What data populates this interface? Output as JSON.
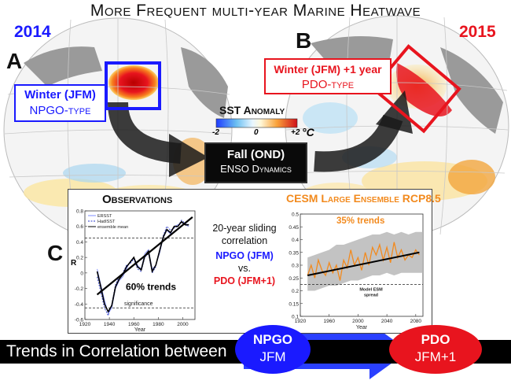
{
  "title": "More Frequent multi-year Marine Heatwave",
  "year_left": "2014",
  "year_right": "2015",
  "panel_a": "A",
  "panel_b": "B",
  "panel_c": "C",
  "box_a": {
    "line1": "Winter (JFM)",
    "line2": "NPGO-type"
  },
  "box_b": {
    "line1": "Winter (JFM) +1 year",
    "line2": "PDO-type"
  },
  "colorbar": {
    "title": "SST Anomaly",
    "min": "-2",
    "mid": "0",
    "max": "+2",
    "unit": "°C"
  },
  "fall_box": {
    "line1": "Fall (OND)",
    "line2": "ENSO Dynamics"
  },
  "middle_text": {
    "line1": "20-year sliding",
    "line2": "correlation",
    "npgo": "NPGO (JFM)",
    "vs": "vs.",
    "pdo": "PDO (JFM+1)"
  },
  "bottom_bar": {
    "text": "Trends in Correlation between"
  },
  "npgo_ellipse": {
    "line1": "NPGO",
    "line2": "JFM"
  },
  "pdo_ellipse": {
    "line1": "PDO",
    "line2": "JFM+1"
  },
  "colors": {
    "blue": "#1a1aff",
    "red": "#e8141e",
    "orange": "#f28a1e",
    "bar": "#000000"
  },
  "chart_data": [
    {
      "type": "line",
      "title": "Observations",
      "xlabel": "Year",
      "ylabel": "R",
      "xlim": [
        1920,
        2010
      ],
      "ylim": [
        -0.6,
        0.8
      ],
      "xticks": [
        1920,
        1940,
        1960,
        1980,
        2000
      ],
      "yticks": [
        -0.6,
        -0.4,
        -0.2,
        0,
        0.2,
        0.4,
        0.6,
        0.8
      ],
      "legend": [
        "ERSST",
        "HadISST",
        "ensemble mean"
      ],
      "annotations": [
        "60% trends",
        "significance"
      ],
      "significance_levels": [
        0.45,
        -0.45
      ],
      "series": [
        {
          "name": "ERSST",
          "x": [
            1930,
            1933,
            1936,
            1939,
            1942,
            1945,
            1948,
            1951,
            1954,
            1957,
            1960,
            1963,
            1966,
            1969,
            1972,
            1975,
            1978,
            1981,
            1984,
            1987,
            1990,
            1993,
            1996,
            1999,
            2002,
            2005
          ],
          "y": [
            0.05,
            -0.15,
            -0.35,
            -0.52,
            -0.45,
            -0.2,
            -0.1,
            -0.05,
            0.05,
            0.15,
            0.2,
            0.1,
            0.05,
            0.25,
            0.3,
            0.05,
            0.1,
            0.25,
            0.45,
            0.55,
            0.5,
            0.6,
            0.62,
            0.65,
            0.62,
            0.6
          ]
        },
        {
          "name": "HadISST",
          "x": [
            1930,
            1933,
            1936,
            1939,
            1942,
            1945,
            1948,
            1951,
            1954,
            1957,
            1960,
            1963,
            1966,
            1969,
            1972,
            1975,
            1978,
            1981,
            1984,
            1987,
            1990,
            1993,
            1996,
            1999,
            2002,
            2005
          ],
          "y": [
            -0.05,
            -0.25,
            -0.45,
            -0.55,
            -0.4,
            -0.15,
            -0.05,
            0.0,
            0.1,
            0.12,
            0.18,
            0.05,
            0.02,
            0.2,
            0.25,
            0.0,
            0.08,
            0.3,
            0.48,
            0.6,
            0.55,
            0.58,
            0.6,
            0.68,
            0.64,
            0.62
          ]
        },
        {
          "name": "ensemble mean",
          "x": [
            1930,
            1933,
            1936,
            1939,
            1942,
            1945,
            1948,
            1951,
            1954,
            1957,
            1960,
            1963,
            1966,
            1969,
            1972,
            1975,
            1978,
            1981,
            1984,
            1987,
            1990,
            1993,
            1996,
            1999,
            2002,
            2005
          ],
          "y": [
            0.02,
            -0.18,
            -0.4,
            -0.5,
            -0.42,
            -0.18,
            -0.08,
            -0.02,
            0.08,
            0.14,
            0.2,
            0.08,
            0.04,
            0.22,
            0.28,
            0.02,
            0.1,
            0.28,
            0.46,
            0.56,
            0.52,
            0.6,
            0.6,
            0.66,
            0.62,
            0.62
          ]
        }
      ],
      "trend": {
        "x": [
          1930,
          2008
        ],
        "y": [
          -0.28,
          0.72
        ]
      }
    },
    {
      "type": "line",
      "title": "CESM Large Ensemble RCP8.5",
      "xlabel": "Year",
      "ylabel": "",
      "xlim": [
        1920,
        2090
      ],
      "ylim": [
        0.1,
        0.5
      ],
      "xticks": [
        1920,
        1960,
        2000,
        2040,
        2080
      ],
      "yticks": [
        0.1,
        0.15,
        0.2,
        0.25,
        0.3,
        0.35,
        0.4,
        0.45,
        0.5
      ],
      "annotations": [
        "35% trends",
        "Model ESM spread"
      ],
      "model_spread_level": 0.225,
      "spread": {
        "x": [
          1930,
          1940,
          1950,
          1960,
          1970,
          1980,
          1990,
          2000,
          2010,
          2020,
          2030,
          2040,
          2050,
          2060,
          2070,
          2080,
          2090
        ],
        "upper": [
          0.33,
          0.34,
          0.35,
          0.36,
          0.38,
          0.38,
          0.39,
          0.4,
          0.41,
          0.42,
          0.42,
          0.43,
          0.42,
          0.43,
          0.42,
          0.43,
          0.43
        ],
        "lower": [
          0.2,
          0.2,
          0.21,
          0.22,
          0.22,
          0.23,
          0.24,
          0.24,
          0.25,
          0.26,
          0.26,
          0.27,
          0.26,
          0.27,
          0.27,
          0.27,
          0.27
        ]
      },
      "series": [
        {
          "name": "",
          "x": [
            1930,
            1935,
            1940,
            1945,
            1950,
            1955,
            1960,
            1965,
            1970,
            1975,
            1980,
            1985,
            1990,
            1995,
            2000,
            2005,
            2010,
            2015,
            2020,
            2025,
            2030,
            2035,
            2040,
            2045,
            2050,
            2055,
            2060,
            2065,
            2070,
            2075,
            2080,
            2085
          ],
          "y": [
            0.26,
            0.3,
            0.25,
            0.32,
            0.28,
            0.26,
            0.31,
            0.27,
            0.3,
            0.24,
            0.32,
            0.29,
            0.36,
            0.3,
            0.33,
            0.28,
            0.35,
            0.3,
            0.37,
            0.34,
            0.38,
            0.32,
            0.37,
            0.31,
            0.39,
            0.33,
            0.36,
            0.32,
            0.34,
            0.33,
            0.36,
            0.34
          ]
        }
      ],
      "trend": {
        "x": [
          1930,
          2085
        ],
        "y": [
          0.26,
          0.35
        ]
      }
    }
  ]
}
